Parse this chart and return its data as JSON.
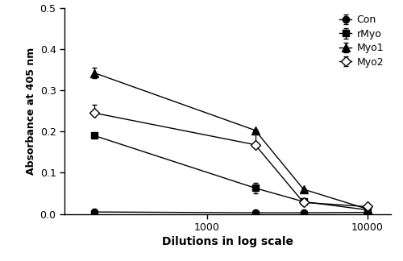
{
  "x_values": [
    200,
    2000,
    4000,
    10000
  ],
  "series": {
    "Con": {
      "y": [
        0.005,
        0.003,
        0.003,
        0.004
      ],
      "yerr_lower": [
        0,
        0,
        0,
        0
      ],
      "yerr_upper": [
        0,
        0,
        0,
        0
      ],
      "marker": "o",
      "marker_fill": "black",
      "linestyle": "-",
      "color": "black",
      "markersize": 6
    },
    "rMyo": {
      "y": [
        0.19,
        0.063,
        0.03,
        0.01
      ],
      "yerr_lower": [
        0.005,
        0.013,
        0,
        0
      ],
      "yerr_upper": [
        0.005,
        0.013,
        0,
        0
      ],
      "marker": "s",
      "marker_fill": "black",
      "linestyle": "-",
      "color": "black",
      "markersize": 6
    },
    "Myo1": {
      "y": [
        0.342,
        0.203,
        0.06,
        0.012
      ],
      "yerr_lower": [
        0.013,
        0,
        0,
        0
      ],
      "yerr_upper": [
        0.013,
        0,
        0,
        0
      ],
      "marker": "^",
      "marker_fill": "black",
      "linestyle": "-",
      "color": "black",
      "markersize": 7
    },
    "Myo2": {
      "y": [
        0.245,
        0.168,
        0.028,
        0.018
      ],
      "yerr_lower": [
        0.005,
        0.003,
        0,
        0
      ],
      "yerr_upper": [
        0.02,
        0.035,
        0,
        0
      ],
      "marker": "D",
      "marker_fill": "white",
      "linestyle": "-",
      "color": "black",
      "markersize": 6
    }
  },
  "xlabel": "Dilutions in log scale",
  "ylabel": "Absorbance at 405 nm",
  "ylim": [
    0,
    0.5
  ],
  "yticks": [
    0.0,
    0.1,
    0.2,
    0.3,
    0.4,
    0.5
  ],
  "xlim_log": [
    130,
    14000
  ],
  "xticks": [
    1000,
    10000
  ],
  "background_color": "#ffffff",
  "legend_order": [
    "Con",
    "rMyo",
    "Myo1",
    "Myo2"
  ],
  "figsize": [
    5.0,
    3.24
  ],
  "dpi": 100
}
